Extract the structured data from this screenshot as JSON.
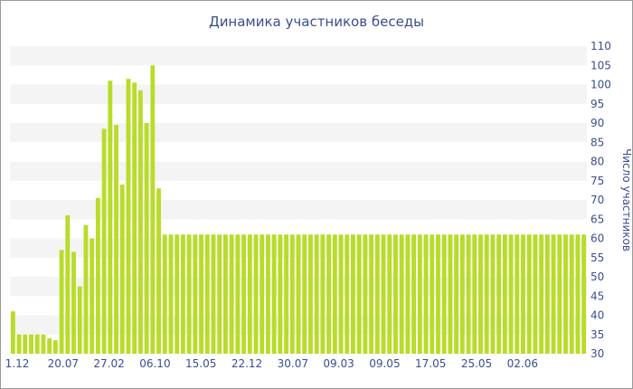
{
  "chart_data": {
    "type": "bar",
    "title": "Динамика участников беседы",
    "ylabel": "Число участников",
    "xlabel": "",
    "ylim": [
      30,
      110
    ],
    "y_ticks": [
      30,
      35,
      40,
      45,
      50,
      55,
      60,
      65,
      70,
      75,
      80,
      85,
      90,
      95,
      100,
      105,
      110
    ],
    "x_tick_labels": [
      "1.12",
      "20.07",
      "27.02",
      "06.10",
      "15.05",
      "22.12",
      "30.07",
      "09.03",
      "09.05",
      "17.05",
      "25.05",
      "02.06"
    ],
    "values": [
      41,
      35,
      35,
      35,
      35,
      35,
      34,
      33.5,
      57,
      66,
      56.5,
      47.5,
      63.5,
      60,
      70.5,
      88.5,
      101,
      89.5,
      74,
      101.5,
      100.5,
      98.5,
      90,
      105,
      73,
      61,
      61,
      61,
      61,
      61,
      61,
      61,
      61,
      61,
      61,
      61,
      61,
      61,
      61,
      61,
      61,
      61,
      61,
      61,
      61,
      61,
      61,
      61,
      61,
      61,
      61,
      61,
      61,
      61,
      61,
      61,
      61,
      61,
      61,
      61,
      61,
      61,
      61,
      61,
      61,
      61,
      61,
      61,
      61,
      61,
      61,
      61,
      61,
      61,
      61,
      61,
      61,
      61,
      61,
      61,
      61,
      61,
      61,
      61,
      61,
      61,
      61,
      61,
      61,
      61,
      61,
      61,
      61,
      61,
      61
    ],
    "bar_color": "#b8dc28",
    "grid": "horizontal-bands",
    "legend": "none"
  }
}
